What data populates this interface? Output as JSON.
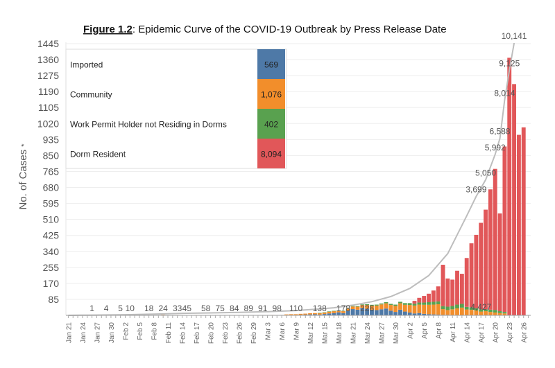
{
  "chart_data": {
    "type": "bar",
    "stacked": true,
    "title_bold": "Figure 1.2",
    "title_rest": ": Epidemic Curve of the COVID-19 Outbreak by Press Release Date",
    "ylabel": "No. of Cases",
    "ylabel_mark": "*",
    "ylim": [
      0,
      1445
    ],
    "yticks": [
      85,
      170,
      255,
      340,
      425,
      510,
      595,
      680,
      765,
      850,
      935,
      1020,
      1105,
      1190,
      1275,
      1360,
      1445
    ],
    "start_day_index": 0,
    "day_count": 98,
    "x_tick_labels": [
      "Jan 21",
      "Jan 24",
      "Jan 27",
      "Jan 30",
      "Feb 2",
      "Feb 5",
      "Feb 8",
      "Feb 11",
      "Feb 14",
      "Feb 17",
      "Feb 20",
      "Feb 23",
      "Feb 26",
      "Feb 29",
      "Mar 3",
      "Mar 6",
      "Mar 9",
      "Mar 12",
      "Mar 15",
      "Mar 18",
      "Mar 21",
      "Mar 24",
      "Mar 27",
      "Mar 30",
      "Apr 2",
      "Apr 5",
      "Apr 8",
      "Apr 11",
      "Apr 14",
      "Apr 17",
      "Apr 20",
      "Apr 23",
      "Apr 26"
    ],
    "series": [
      {
        "name": "Imported",
        "total": "569",
        "color": "#4e79a7",
        "values": [
          1,
          0,
          2,
          0,
          0,
          0,
          2,
          0,
          0,
          0,
          0,
          0,
          0,
          1,
          1,
          1,
          0,
          0,
          0,
          0,
          1,
          0,
          0,
          0,
          0,
          0,
          1,
          1,
          0,
          0,
          0,
          0,
          0,
          0,
          0,
          0,
          0,
          0,
          0,
          0,
          0,
          0,
          0,
          0,
          0,
          0,
          2,
          2,
          2,
          3,
          4,
          5,
          6,
          4,
          7,
          10,
          12,
          16,
          12,
          24,
          33,
          30,
          40,
          35,
          30,
          28,
          32,
          36,
          25,
          18,
          30,
          20,
          15,
          10,
          12,
          8,
          6,
          5,
          4,
          3,
          3,
          2,
          2,
          1,
          1,
          1,
          1,
          0,
          0,
          0,
          0,
          0,
          0,
          0,
          0,
          0,
          0,
          0
        ]
      },
      {
        "name": "Community",
        "total": "1,076",
        "color": "#f28e2b",
        "values": [
          0,
          0,
          0,
          0,
          0,
          0,
          0,
          1,
          1,
          1,
          2,
          2,
          3,
          1,
          2,
          2,
          3,
          2,
          1,
          1,
          2,
          1,
          0,
          2,
          1,
          1,
          0,
          1,
          0,
          1,
          0,
          0,
          0,
          0,
          0,
          0,
          0,
          0,
          0,
          1,
          1,
          1,
          1,
          2,
          1,
          2,
          3,
          4,
          4,
          5,
          5,
          6,
          6,
          8,
          8,
          10,
          10,
          8,
          10,
          12,
          14,
          16,
          15,
          20,
          22,
          24,
          26,
          28,
          30,
          32,
          34,
          36,
          40,
          42,
          45,
          48,
          50,
          52,
          55,
          30,
          25,
          30,
          35,
          40,
          30,
          28,
          25,
          20,
          22,
          18,
          15,
          12,
          10,
          0,
          0,
          0,
          0,
          0
        ]
      },
      {
        "name": "Work Permit Holder not Residing in Dorms",
        "total": "402",
        "color": "#59a14f",
        "values": [
          0,
          0,
          0,
          0,
          0,
          0,
          0,
          0,
          0,
          0,
          0,
          0,
          0,
          0,
          0,
          0,
          0,
          0,
          0,
          0,
          0,
          0,
          0,
          0,
          0,
          0,
          0,
          0,
          0,
          0,
          0,
          0,
          0,
          0,
          0,
          0,
          0,
          0,
          0,
          0,
          0,
          0,
          0,
          0,
          0,
          0,
          0,
          0,
          0,
          0,
          0,
          0,
          0,
          1,
          1,
          1,
          2,
          2,
          2,
          2,
          3,
          3,
          3,
          4,
          4,
          5,
          5,
          6,
          6,
          7,
          8,
          9,
          10,
          10,
          11,
          12,
          14,
          15,
          15,
          16,
          18,
          18,
          20,
          20,
          14,
          14,
          12,
          12,
          10,
          12,
          14,
          10,
          8,
          0,
          0,
          0,
          0,
          0
        ]
      },
      {
        "name": "Dorm Resident",
        "total": "8,094",
        "color": "#e15759",
        "values": [
          0,
          0,
          0,
          0,
          0,
          0,
          0,
          0,
          0,
          0,
          0,
          0,
          0,
          0,
          0,
          0,
          0,
          0,
          0,
          0,
          0,
          0,
          0,
          0,
          0,
          0,
          0,
          0,
          0,
          0,
          0,
          0,
          0,
          0,
          0,
          0,
          0,
          0,
          0,
          0,
          0,
          0,
          0,
          0,
          0,
          0,
          0,
          0,
          0,
          0,
          0,
          0,
          0,
          0,
          0,
          0,
          0,
          0,
          0,
          0,
          0,
          0,
          0,
          0,
          0,
          0,
          0,
          0,
          0,
          0,
          0,
          0,
          0,
          15,
          25,
          35,
          45,
          60,
          80,
          220,
          150,
          140,
          180,
          160,
          260,
          340,
          390,
          460,
          530,
          640,
          750,
          520,
          880,
          1370,
          1230,
          960,
          1000,
          0
        ]
      }
    ],
    "cumulative_line": {
      "color": "#bdbdbd",
      "points": [
        [
          0,
          1
        ],
        [
          3,
          4
        ],
        [
          6,
          10
        ],
        [
          12,
          24
        ],
        [
          18,
          45
        ],
        [
          24,
          75
        ],
        [
          30,
          91
        ],
        [
          36,
          110
        ],
        [
          42,
          138
        ],
        [
          48,
          178
        ],
        [
          52,
          226
        ],
        [
          56,
          280
        ],
        [
          60,
          380
        ],
        [
          64,
          509
        ],
        [
          68,
          700
        ],
        [
          72,
          1000
        ],
        [
          76,
          1480
        ],
        [
          80,
          2300
        ],
        [
          84,
          3699
        ],
        [
          86,
          4427
        ],
        [
          88,
          5050
        ],
        [
          90,
          5992
        ],
        [
          91,
          6588
        ],
        [
          92,
          8014
        ],
        [
          93,
          9125
        ],
        [
          94,
          10141
        ]
      ]
    },
    "cumulative_labels": [
      {
        "day": 5,
        "text": "1"
      },
      {
        "day": 8,
        "text": "4"
      },
      {
        "day": 11,
        "text": "5"
      },
      {
        "day": 13,
        "text": "10"
      },
      {
        "day": 17,
        "text": "18"
      },
      {
        "day": 20,
        "text": "24"
      },
      {
        "day": 23,
        "text": "33"
      },
      {
        "day": 25,
        "text": "45"
      },
      {
        "day": 29,
        "text": "58"
      },
      {
        "day": 32,
        "text": "75"
      },
      {
        "day": 35,
        "text": "84"
      },
      {
        "day": 38,
        "text": "89"
      },
      {
        "day": 41,
        "text": "91"
      },
      {
        "day": 44,
        "text": "98"
      },
      {
        "day": 48,
        "text": "110"
      },
      {
        "day": 53,
        "text": "138"
      },
      {
        "day": 58,
        "text": "178"
      },
      {
        "day": 63,
        "text": "226"
      },
      {
        "day": 86,
        "text": "3,699"
      },
      {
        "day": 87,
        "text": "4,427"
      },
      {
        "day": 88,
        "text": "5,050"
      },
      {
        "day": 90,
        "text": "5,992"
      },
      {
        "day": 91,
        "text": "6,588"
      },
      {
        "day": 92,
        "text": "8,014"
      },
      {
        "day": 93,
        "text": "9,125"
      },
      {
        "day": 94,
        "text": "10,141"
      }
    ]
  }
}
